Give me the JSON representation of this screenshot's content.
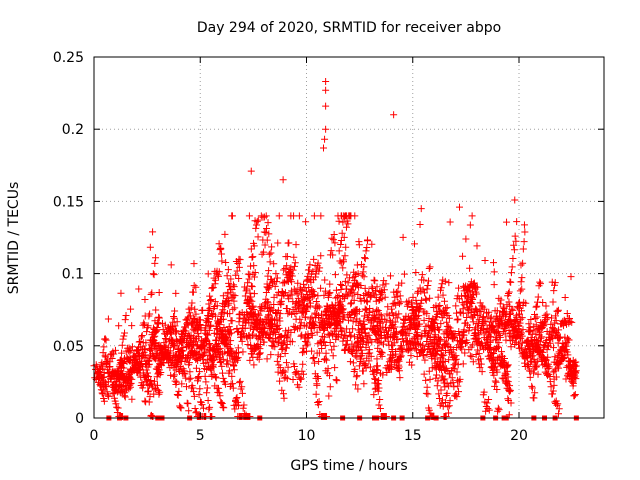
{
  "chart_data": {
    "type": "scatter",
    "title": "Day 294 of 2020, SRMTID for receiver abpo",
    "xlabel": "GPS time / hours",
    "ylabel": "SRMTID / TECUs",
    "xlim": [
      0,
      24
    ],
    "ylim": [
      0,
      0.25
    ],
    "x_ticks": [
      0,
      5,
      10,
      15,
      20
    ],
    "y_ticks": [
      0,
      0.05,
      0.1,
      0.15,
      0.2,
      0.25
    ],
    "x_tick_labels": [
      "0",
      "5",
      "10",
      "15",
      "20"
    ],
    "y_tick_labels": [
      "0",
      "0.05",
      "0.1",
      "0.15",
      "0.2",
      "0.25"
    ],
    "grid": true,
    "marker": "+",
    "color": "#ff0000",
    "baseline_markers": {
      "marker": "square",
      "y": 0,
      "x": [
        0.7,
        1.2,
        1.5,
        3.0,
        3.2,
        4.5,
        7.8,
        11.7,
        12.5,
        13.2,
        13.3,
        14.1,
        14.5,
        15.7,
        16.1,
        18.3,
        18.9,
        19.3,
        19.4,
        20.7,
        21.2,
        21.7,
        22.7
      ]
    },
    "outliers": [
      {
        "x": 10.9,
        "y": 0.233
      },
      {
        "x": 10.9,
        "y": 0.227
      },
      {
        "x": 10.9,
        "y": 0.216
      },
      {
        "x": 14.1,
        "y": 0.21
      },
      {
        "x": 10.9,
        "y": 0.2
      },
      {
        "x": 10.85,
        "y": 0.193
      },
      {
        "x": 10.8,
        "y": 0.187
      },
      {
        "x": 7.4,
        "y": 0.171
      },
      {
        "x": 8.9,
        "y": 0.165
      },
      {
        "x": 15.4,
        "y": 0.145
      },
      {
        "x": 17.2,
        "y": 0.146
      },
      {
        "x": 19.8,
        "y": 0.151
      }
    ],
    "envelope": {
      "hours": [
        0,
        1,
        2,
        3,
        4,
        5,
        6,
        7,
        8,
        9,
        10,
        11,
        12,
        13,
        14,
        15,
        16,
        17,
        18,
        19,
        20,
        21,
        22,
        22.7
      ],
      "mean": [
        0.032,
        0.034,
        0.04,
        0.048,
        0.046,
        0.042,
        0.055,
        0.063,
        0.068,
        0.072,
        0.07,
        0.072,
        0.066,
        0.06,
        0.045,
        0.062,
        0.052,
        0.06,
        0.055,
        0.058,
        0.05,
        0.048,
        0.045,
        0.04
      ],
      "spread": [
        0.012,
        0.013,
        0.014,
        0.015,
        0.016,
        0.02,
        0.022,
        0.03,
        0.032,
        0.032,
        0.03,
        0.032,
        0.03,
        0.026,
        0.025,
        0.028,
        0.024,
        0.028,
        0.024,
        0.024,
        0.018,
        0.016,
        0.016,
        0.014
      ]
    },
    "seed": 294
  }
}
